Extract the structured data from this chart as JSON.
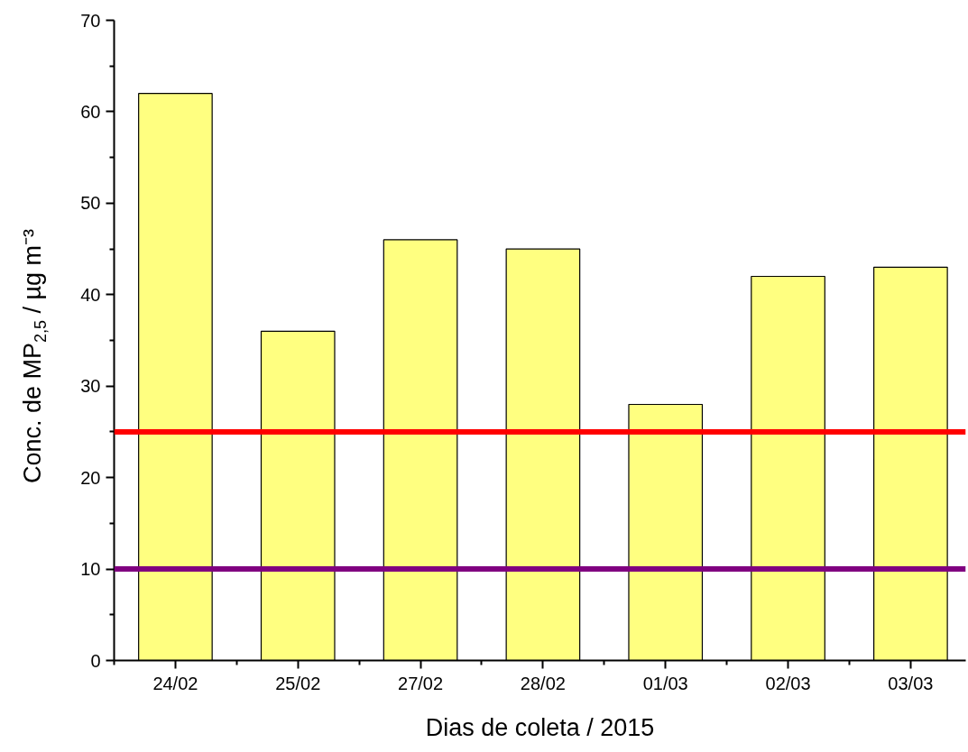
{
  "chart_data": {
    "type": "bar",
    "xlabel": "Dias de coleta / 2015",
    "ylabel": "Conc. de MP$_{2,5}$ / µg m⁻³",
    "categories": [
      "24/02",
      "25/02",
      "27/02",
      "28/02",
      "01/03",
      "02/03",
      "03/03"
    ],
    "values": [
      62,
      36,
      46,
      45,
      28,
      42,
      43
    ],
    "color": "#ffff80",
    "ylim": [
      0,
      70
    ],
    "yticks": [
      0,
      10,
      20,
      30,
      40,
      50,
      60,
      70
    ],
    "ref_lines": [
      {
        "axis": "y",
        "value": 25,
        "label": null,
        "color": "#ff0000"
      },
      {
        "axis": "y",
        "value": 10,
        "label": null,
        "color": "#800080"
      }
    ],
    "grid": false
  }
}
